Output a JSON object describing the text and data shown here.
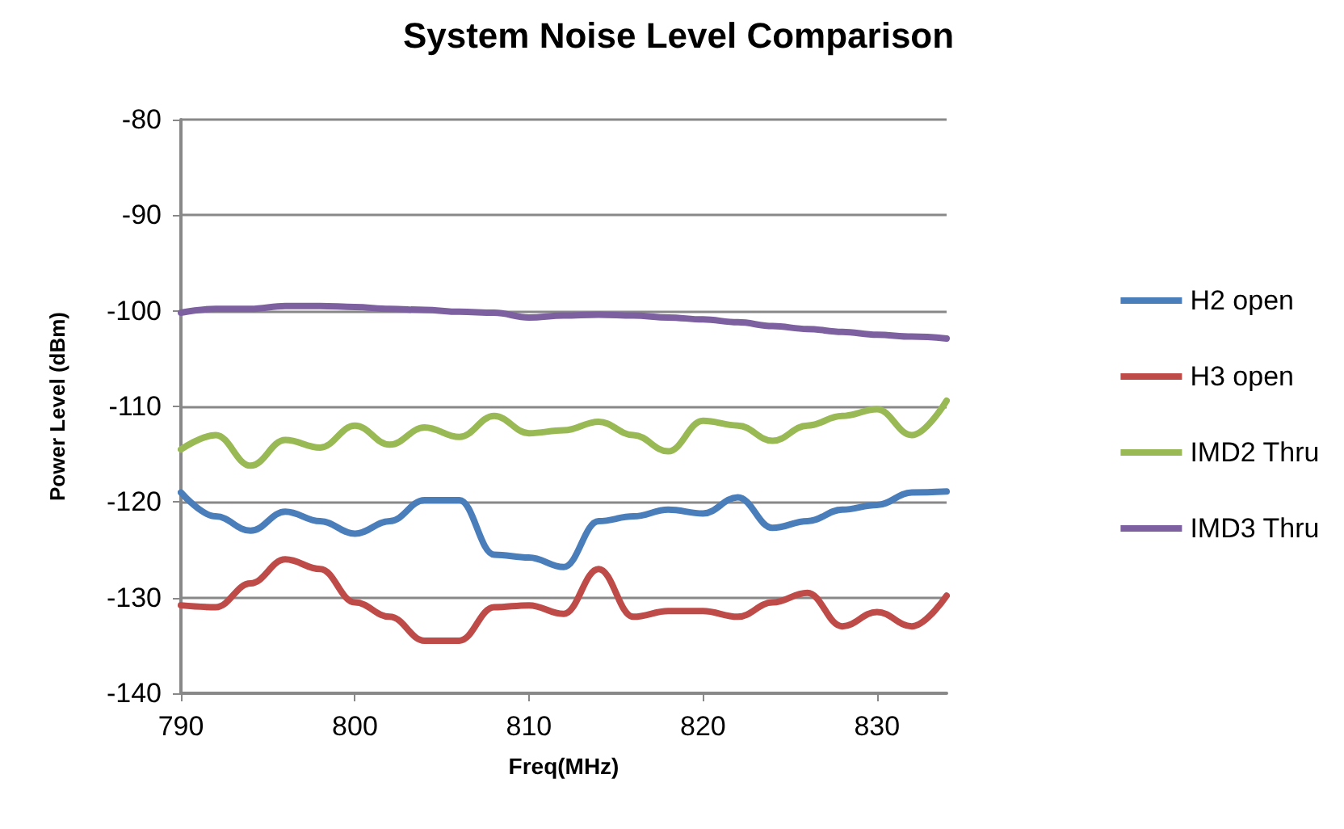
{
  "chart_data": {
    "type": "line",
    "title": "System Noise Level Comparison",
    "xlabel": "Freq(MHz)",
    "ylabel": "Power Level (dBm)",
    "x": [
      790,
      792,
      794,
      796,
      798,
      800,
      802,
      804,
      806,
      808,
      810,
      812,
      814,
      816,
      818,
      820,
      822,
      824,
      826,
      828,
      830,
      832,
      834
    ],
    "series": [
      {
        "name": "H2 open",
        "color": "#4a7ebb",
        "values": [
          -119,
          -121.5,
          -123,
          -121,
          -122,
          -123.3,
          -122,
          -119.8,
          -119.8,
          -125.5,
          -125.8,
          -126.8,
          -122,
          -121.5,
          -120.8,
          -121.2,
          -119.5,
          -122.7,
          -122,
          -120.8,
          -120.3,
          -119,
          -118.9
        ]
      },
      {
        "name": "H3 open",
        "color": "#be4b48",
        "values": [
          -130.8,
          -131,
          -128.5,
          -126,
          -127,
          -130.5,
          -132,
          -134.5,
          -134.5,
          -131,
          -130.8,
          -131.7,
          -127,
          -132,
          -131.4,
          -131.4,
          -132,
          -130.5,
          -129.5,
          -133,
          -131.5,
          -133,
          -129.8
        ]
      },
      {
        "name": "IMD2 Thru",
        "color": "#98b954",
        "values": [
          -114.5,
          -113,
          -116.2,
          -113.5,
          -114.3,
          -112,
          -114,
          -112.2,
          -113.2,
          -111,
          -112.8,
          -112.5,
          -111.6,
          -113,
          -114.7,
          -111.5,
          -112,
          -113.6,
          -112,
          -111,
          -110.3,
          -113,
          -109.4
        ]
      },
      {
        "name": "IMD3 Thru",
        "color": "#7d60a0",
        "values": [
          -100.2,
          -99.8,
          -99.8,
          -99.5,
          -99.5,
          -99.6,
          -99.8,
          -99.9,
          -100.1,
          -100.2,
          -100.7,
          -100.5,
          -100.4,
          -100.5,
          -100.7,
          -100.9,
          -101.2,
          -101.6,
          -101.9,
          -102.2,
          -102.5,
          -102.7,
          -102.9
        ]
      }
    ],
    "xlim": [
      790,
      834
    ],
    "xticks": [
      790,
      800,
      810,
      820,
      830
    ],
    "ylim": [
      -140,
      -80
    ],
    "yticks": [
      -140,
      -130,
      -120,
      -110,
      -100,
      -90,
      -80
    ],
    "grid": "y",
    "legend": "right",
    "marker": "none",
    "line_style": "solid"
  }
}
